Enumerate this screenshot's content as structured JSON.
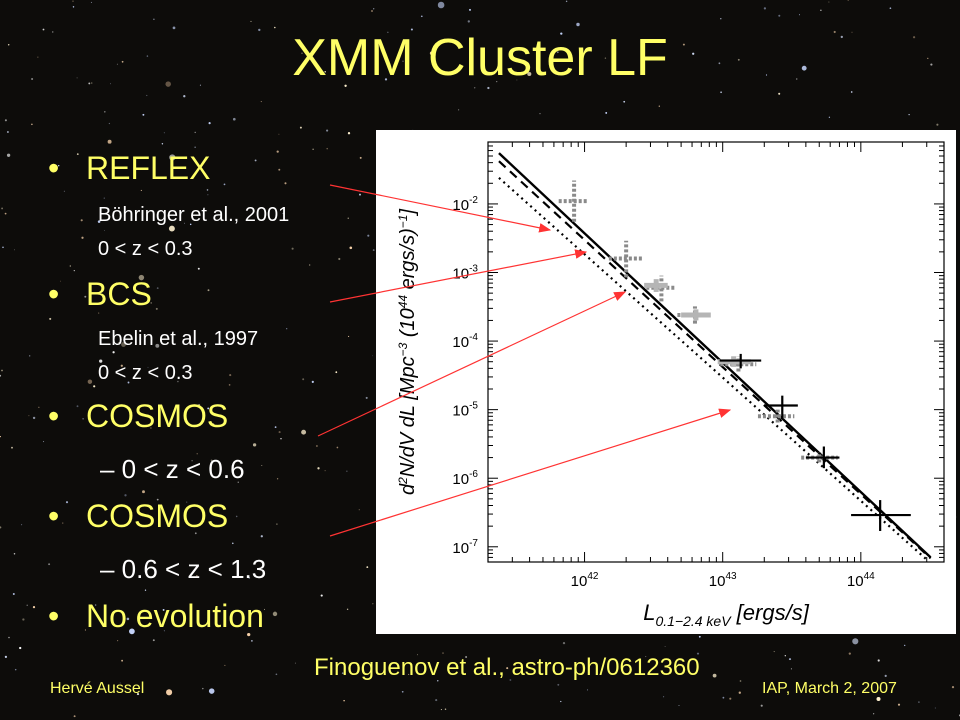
{
  "slide": {
    "title": "XMM Cluster LF",
    "bullets": [
      {
        "label": "REFLEX",
        "subs": [
          "Böhringer et al., 2001",
          "0 < z < 0.3"
        ]
      },
      {
        "label": "BCS",
        "subs": [
          "Ebelin et al., 1997",
          "0 < z < 0.3"
        ]
      },
      {
        "label": "COSMOS",
        "range": "– 0 < z < 0.6"
      },
      {
        "label": "COSMOS",
        "range": "– 0.6 < z < 1.3"
      },
      {
        "label": "No evolution"
      }
    ],
    "bullet_glyph": "•",
    "citation": "Finoguenov et al., astro-ph/0612360",
    "footer_left": "Hervé Aussel",
    "footer_right": "IAP, March 2, 2007"
  },
  "colors": {
    "title": "#ffff66",
    "background": "#0d0c0a",
    "arrow": "#ff3333"
  },
  "chart_data": {
    "type": "scatter",
    "x_scale": "log",
    "y_scale": "log",
    "xlim": [
      2e+41,
      4e+44
    ],
    "ylim": [
      6e-08,
      0.08
    ],
    "x_ticks": [
      {
        "value": 1e+42,
        "base": "10",
        "exp": "42"
      },
      {
        "value": 1e+43,
        "base": "10",
        "exp": "43"
      },
      {
        "value": 1e+44,
        "base": "10",
        "exp": "44"
      }
    ],
    "y_ticks": [
      {
        "value": 0.01,
        "base": "10",
        "exp": "-2"
      },
      {
        "value": 0.001,
        "base": "10",
        "exp": "-3"
      },
      {
        "value": 0.0001,
        "base": "10",
        "exp": "-4"
      },
      {
        "value": 1e-05,
        "base": "10",
        "exp": "-5"
      },
      {
        "value": 1e-06,
        "base": "10",
        "exp": "-6"
      },
      {
        "value": 1e-07,
        "base": "10",
        "exp": "-7"
      }
    ],
    "xlabel": "L0.1−2.4 keV [ergs/s]",
    "ylabel": "d2N/dV dL [Mpc−3 (1044 ergs/s)−1]",
    "models": [
      {
        "style": "solid",
        "points": [
          [
            2.4e+41,
            0.055
          ],
          [
            3.2e+44,
            7e-08
          ]
        ]
      },
      {
        "style": "dashed",
        "points": [
          [
            2.4e+41,
            0.042
          ],
          [
            3.2e+44,
            6.8e-08
          ]
        ]
      },
      {
        "style": "dotted",
        "points": [
          [
            2.4e+41,
            0.024
          ],
          [
            3e+44,
            6.5e-08
          ]
        ]
      }
    ],
    "series": [
      {
        "style": "reflex",
        "points": [
          {
            "x": 8.4e+41,
            "y": 0.011,
            "xerr": [
              6.5e+41,
              1.05e+42
            ],
            "yerr": [
              0.0055,
              0.022
            ]
          },
          {
            "x": 2e+42,
            "y": 0.0016,
            "xerr": [
              1.5e+42,
              2.6e+42
            ],
            "yerr": [
              0.00085,
              0.0029
            ]
          },
          {
            "x": 3.6e+42,
            "y": 0.0006,
            "xerr": [
              2.8e+42,
              4.5e+42
            ],
            "yerr": [
              0.00038,
              0.0009
            ]
          },
          {
            "x": 6.3e+42,
            "y": 0.00024,
            "xerr": [
              4.7e+42,
              8.4e+42
            ],
            "yerr": [
              0.00018,
              0.00032
            ]
          },
          {
            "x": 1.3e+43,
            "y": 4.6e-05,
            "xerr": [
              9.6e+42,
              1.75e+43
            ],
            "yerr": [
              3.6e-05,
              6e-05
            ]
          },
          {
            "x": 2.5e+43,
            "y": 8e-06,
            "xerr": [
              1.8e+43,
              3.3e+43
            ],
            "yerr": [
              6.5e-06,
              1e-05
            ]
          },
          {
            "x": 5e+43,
            "y": 2e-06,
            "xerr": [
              3.7e+43,
              6.8e+43
            ],
            "yerr": [
              1.7e-06,
              2.4e-06
            ]
          }
        ]
      },
      {
        "style": "bcs",
        "points": [
          {
            "x": 3.3e+42,
            "y": 0.00065,
            "xerr": [
              2.7e+42,
              4e+42
            ],
            "yerr": [
              0.00052,
              0.0008
            ]
          },
          {
            "x": 6.4e+42,
            "y": 0.00024,
            "xerr": [
              5e+42,
              8.2e+42
            ],
            "yerr": [
              0.0002,
              0.00029
            ]
          },
          {
            "x": 1.2e+43,
            "y": 5e-05,
            "xerr": [
              9.2e+42,
              1.6e+43
            ],
            "yerr": [
              4.2e-05,
              6e-05
            ]
          }
        ]
      },
      {
        "style": "cosmos_low",
        "points": [
          {
            "x": 1.35e+43,
            "y": 5.2e-05,
            "xerr": [
              9.5e+42,
              1.9e+43
            ],
            "yerr": [
              4e-05,
              6.5e-05
            ]
          },
          {
            "x": 2.7e+43,
            "y": 1.15e-05,
            "xerr": [
              2e+43,
              3.5e+43
            ],
            "yerr": [
              7.5e-06,
              1.6e-05
            ]
          },
          {
            "x": 5.4e+43,
            "y": 2e-06,
            "xerr": [
              4e+43,
              7e+43
            ],
            "yerr": [
              1.4e-06,
              2.9e-06
            ]
          },
          {
            "x": 1.38e+44,
            "y": 2.9e-07,
            "xerr": [
              8.5e+43,
              2.3e+44
            ],
            "yerr": [
              1.7e-07,
              4.8e-07
            ]
          }
        ]
      }
    ]
  }
}
